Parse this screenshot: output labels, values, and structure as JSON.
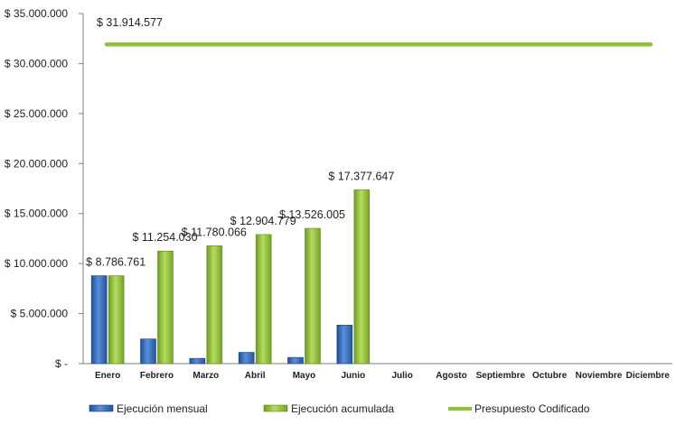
{
  "chart_data": {
    "type": "bar",
    "categories": [
      "Enero",
      "Febrero",
      "Marzo",
      "Abril",
      "Mayo",
      "Junio",
      "Julio",
      "Agosto",
      "Septiembre",
      "Octubre",
      "Noviembre",
      "Diciembre"
    ],
    "series": [
      {
        "name": "Ejecución mensual",
        "type": "bar",
        "color": "#3a6fc0",
        "values": [
          8786761,
          2467269,
          526036,
          1124713,
          621226,
          3851642,
          null,
          null,
          null,
          null,
          null,
          null
        ]
      },
      {
        "name": "Ejecución acumulada",
        "type": "bar",
        "color": "#8fc23a",
        "values": [
          8786761,
          11254030,
          11780066,
          12904779,
          13526005,
          17377647,
          null,
          null,
          null,
          null,
          null,
          null
        ],
        "data_labels": [
          "$ 8.786.761",
          "$ 11.254.030",
          "$ 11.780.066",
          "$ 12.904.779",
          "$ 13.526.005",
          "$ 17.377.647"
        ]
      },
      {
        "name": "Presupuesto Codificado",
        "type": "line",
        "color": "#8fc23a",
        "value": 31914577,
        "data_label": "$ 31.914.577"
      }
    ],
    "ylim": [
      0,
      35000000
    ],
    "yticks": [
      0,
      5000000,
      10000000,
      15000000,
      20000000,
      25000000,
      30000000,
      35000000
    ],
    "ytick_labels": [
      "$ -",
      "$ 5.000.000",
      "$ 10.000.000",
      "$ 15.000.000",
      "$ 20.000.000",
      "$ 25.000.000",
      "$ 30.000.000",
      "$ 35.000.000"
    ],
    "grid": false,
    "legend": "bottom",
    "title": "",
    "xlabel": "",
    "ylabel": ""
  }
}
